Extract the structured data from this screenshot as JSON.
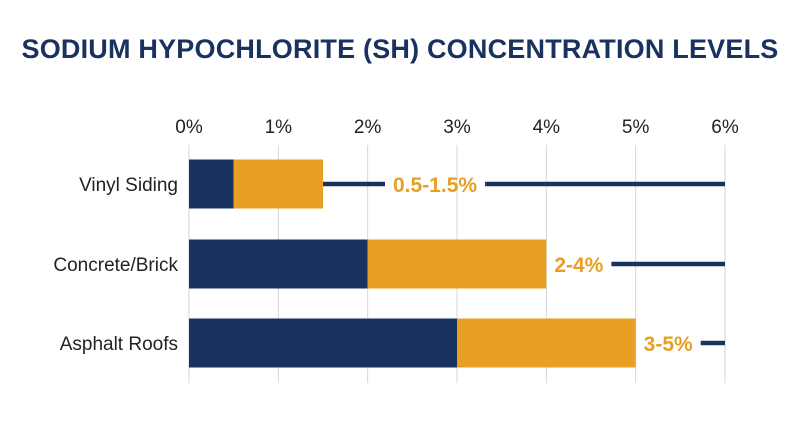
{
  "colors": {
    "navy": "#1a3260",
    "gold": "#e89f24",
    "grid": "#d5d5d5",
    "text": "#222222"
  },
  "chart_data": {
    "type": "bar",
    "orientation": "horizontal",
    "stacked": true,
    "title": "SODIUM HYPOCHLORITE (SH) CONCENTRATION LEVELS",
    "xlabel": "",
    "ylabel": "",
    "xlim": [
      0,
      6
    ],
    "x_ticks": [
      "0%",
      "1%",
      "2%",
      "3%",
      "4%",
      "5%",
      "6%"
    ],
    "x_tick_values": [
      0,
      1,
      2,
      3,
      4,
      5,
      6
    ],
    "grid": true,
    "legend": "none",
    "categories": [
      "Vinyl Siding",
      "Concrete/Brick",
      "Asphalt Roofs"
    ],
    "series": [
      {
        "values": [
          0.5,
          2,
          3
        ],
        "color": "#1a3260"
      },
      {
        "values": [
          1.0,
          2,
          2
        ],
        "color": "#e89f24"
      }
    ],
    "range_labels": [
      "0.5-1.5%",
      "2-4%",
      "3-5%"
    ],
    "range_label_color": "#e89f24",
    "reference_line_end": 6,
    "reference_line_color": "#1a3260"
  }
}
